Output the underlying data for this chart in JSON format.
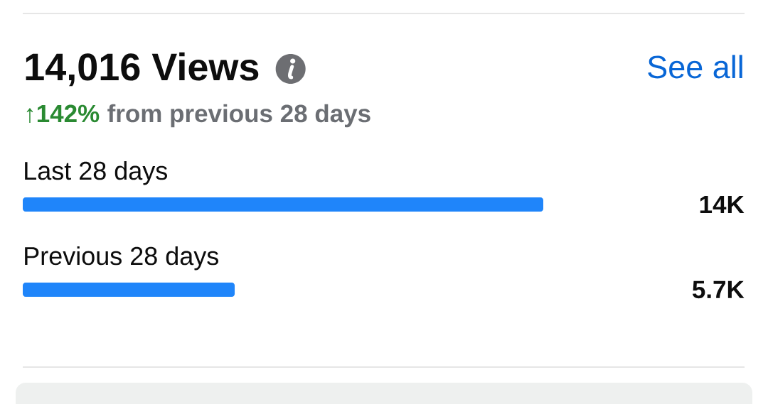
{
  "chart_data": {
    "type": "bar",
    "orientation": "horizontal",
    "title": "14,016 Views",
    "subtitle": "from previous 28 days",
    "annotations": [
      "↑142%",
      "See all"
    ],
    "categories": [
      "Last 28 days",
      "Previous 28 days"
    ],
    "values": [
      14000,
      5700
    ],
    "value_labels": [
      "14K",
      "5.7K"
    ],
    "color": "#1f85fa"
  }
}
